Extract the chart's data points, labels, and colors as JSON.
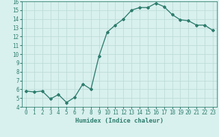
{
  "x": [
    0,
    1,
    2,
    3,
    4,
    5,
    6,
    7,
    8,
    9,
    10,
    11,
    12,
    13,
    14,
    15,
    16,
    17,
    18,
    19,
    20,
    21,
    22,
    23
  ],
  "y": [
    5.8,
    5.7,
    5.8,
    4.9,
    5.4,
    4.5,
    5.1,
    6.6,
    6.0,
    9.8,
    12.5,
    13.3,
    14.0,
    15.0,
    15.3,
    15.3,
    15.8,
    15.4,
    14.5,
    13.9,
    13.8,
    13.3,
    13.3,
    12.7
  ],
  "line_color": "#2e7d6e",
  "marker": "D",
  "marker_size": 2.0,
  "bg_color": "#d8f0ee",
  "grid_color": "#b8d8d4",
  "xlabel": "Humidex (Indice chaleur)",
  "xlim": [
    -0.5,
    23.5
  ],
  "ylim": [
    4,
    16
  ],
  "yticks": [
    4,
    5,
    6,
    7,
    8,
    9,
    10,
    11,
    12,
    13,
    14,
    15,
    16
  ],
  "xticks": [
    0,
    1,
    2,
    3,
    4,
    5,
    6,
    7,
    8,
    9,
    10,
    11,
    12,
    13,
    14,
    15,
    16,
    17,
    18,
    19,
    20,
    21,
    22,
    23
  ],
  "tick_fontsize": 5.5,
  "xlabel_fontsize": 6.5,
  "line_width": 1.0
}
